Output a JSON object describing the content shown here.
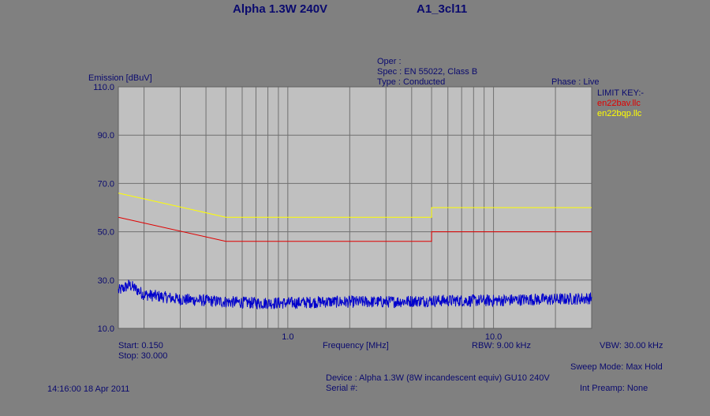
{
  "header": {
    "title": "Alpha 1.3W 240V",
    "file_id": "A1_3cl11"
  },
  "info": {
    "oper": "Oper :",
    "spec": "Spec : EN 55022, Class B",
    "type": "Type : Conducted",
    "phase": "Phase : Live"
  },
  "limit_key": {
    "title": "LIMIT KEY:-",
    "entries": [
      {
        "name": "en22bav.llc",
        "color": "#e00000"
      },
      {
        "name": "en22bqp.llc",
        "color": "#ffff00"
      }
    ]
  },
  "footer": {
    "start": "Start: 0.150",
    "stop": "Stop: 30.000",
    "rbw": "RBW: 9.00 kHz",
    "vbw": "VBW: 30.00 kHz",
    "sweep_mode": "Sweep Mode: Max Hold",
    "device": "Device : Alpha 1.3W (8W incandescent equiv) GU10 240V",
    "serial": "Serial #:",
    "int_preamp": "Int Preamp: None",
    "timestamp": "14:16:00 18 Apr 2011"
  },
  "chart_data": {
    "type": "line",
    "scale_x": "log",
    "xlim": [
      0.15,
      30
    ],
    "ylim": [
      10,
      110
    ],
    "ylabel": "Emission [dBuV]",
    "xlabel": "Frequency [MHz]",
    "y_ticks": [
      "110.0",
      "90.0",
      "70.0",
      "50.0",
      "30.0",
      "10.0"
    ],
    "y_tick_values": [
      110,
      90,
      70,
      50,
      30,
      10
    ],
    "x_ticks": [
      "1.0",
      "10.0"
    ],
    "x_tick_values": [
      1,
      10
    ],
    "grid": true,
    "series": [
      {
        "name": "en22bqp.llc",
        "color": "#ffff00",
        "x": [
          0.15,
          0.5,
          0.5,
          5,
          5,
          30
        ],
        "y": [
          66,
          56,
          56,
          56,
          60,
          60
        ]
      },
      {
        "name": "en22bav.llc",
        "color": "#e00000",
        "x": [
          0.15,
          0.5,
          0.5,
          5,
          5,
          30
        ],
        "y": [
          56,
          46,
          46,
          46,
          50,
          50
        ]
      },
      {
        "color": "#0000cc",
        "x": [
          0.15,
          0.17,
          0.2,
          0.25,
          0.3,
          0.4,
          0.5,
          0.7,
          1,
          1.5,
          2,
          3,
          5,
          7,
          10,
          15,
          20,
          30
        ],
        "y": [
          25.5,
          28,
          24,
          23,
          22,
          21.5,
          21,
          20.5,
          20.5,
          21,
          21,
          21,
          21.5,
          21.5,
          21.5,
          22,
          22,
          22.5
        ]
      }
    ]
  }
}
